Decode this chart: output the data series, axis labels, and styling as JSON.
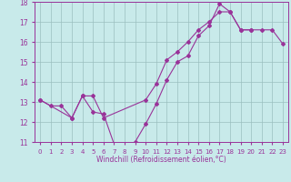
{
  "xlabel": "Windchill (Refroidissement éolien,°C)",
  "xlim": [
    -0.5,
    23.5
  ],
  "ylim": [
    11,
    18
  ],
  "xticks": [
    0,
    1,
    2,
    3,
    4,
    5,
    6,
    7,
    8,
    9,
    10,
    11,
    12,
    13,
    14,
    15,
    16,
    17,
    18,
    19,
    20,
    21,
    22,
    23
  ],
  "yticks": [
    11,
    12,
    13,
    14,
    15,
    16,
    17,
    18
  ],
  "background_color": "#c8eaea",
  "plot_bg_color": "#c8eaea",
  "line_color": "#993399",
  "grid_color": "#9bbfbf",
  "series1_x": [
    0,
    1,
    2,
    3,
    4,
    5,
    6,
    7,
    8,
    9,
    10,
    11,
    12,
    13,
    14,
    15,
    16,
    17,
    18,
    19,
    20
  ],
  "series1_y": [
    13.1,
    12.8,
    12.8,
    12.2,
    13.3,
    12.5,
    12.4,
    10.9,
    10.75,
    11.0,
    11.9,
    12.9,
    14.1,
    15.0,
    15.3,
    16.3,
    16.8,
    17.9,
    17.5,
    16.6,
    16.6
  ],
  "series2_x": [
    0,
    3,
    4,
    5,
    6,
    10,
    11,
    12,
    13,
    14,
    15,
    16,
    17,
    18,
    19,
    20,
    21,
    22,
    23
  ],
  "series2_y": [
    13.1,
    12.2,
    13.3,
    13.3,
    12.2,
    13.1,
    13.9,
    15.1,
    15.5,
    16.0,
    16.6,
    17.0,
    17.5,
    17.5,
    16.6,
    16.6,
    16.6,
    16.6,
    15.9
  ]
}
